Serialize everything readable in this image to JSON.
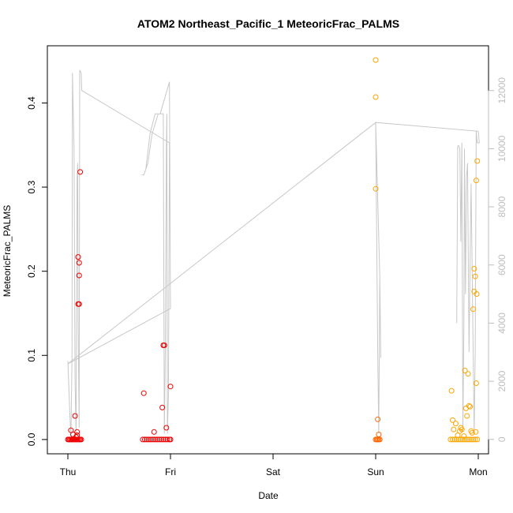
{
  "chart_data": {
    "type": "scatter",
    "title": "ATOM2 Northeast_Pacific_1 MeteoricFrac_PALMS",
    "xlabel": "Date",
    "ylabel": "MeteoricFrac_PALMS",
    "x_ticks": [
      "Thu",
      "Fri",
      "Sat",
      "Sun",
      "Mon"
    ],
    "xlim_days": [
      -0.2,
      4.1
    ],
    "ylim": [
      -0.017,
      0.468
    ],
    "y_ticks": [
      0.0,
      0.1,
      0.2,
      0.3,
      0.4
    ],
    "y2_ticks": [
      0,
      2000,
      4000,
      6000,
      8000,
      10000,
      12000
    ],
    "y2lim": [
      -495,
      13540
    ],
    "grid": false,
    "legend": "none",
    "colors": {
      "early": "#ee0000",
      "mid": "#ff6600",
      "late": "#ffa500",
      "altitude": "#c8c8c8"
    },
    "altitude_line": [
      [
        0.0,
        2700
      ],
      [
        0.02,
        800
      ],
      [
        0.03,
        100
      ],
      [
        0.04,
        2700
      ],
      [
        0.045,
        12600
      ],
      [
        0.06,
        10000
      ],
      [
        0.07,
        2000
      ],
      [
        0.08,
        200
      ],
      [
        0.09,
        9000
      ],
      [
        0.095,
        9500
      ],
      [
        0.1,
        4000
      ],
      [
        0.11,
        400
      ],
      [
        0.115,
        12700
      ],
      [
        0.13,
        12600
      ],
      [
        0.135,
        12000
      ],
      [
        0.99,
        10200
      ],
      [
        0.98,
        1500
      ],
      [
        0.97,
        200
      ],
      [
        0.965,
        11200
      ],
      [
        0.96,
        10000
      ],
      [
        0.95,
        3000
      ],
      [
        0.94,
        200
      ],
      [
        0.93,
        11200
      ],
      [
        0.88,
        11200
      ],
      [
        0.82,
        10500
      ],
      [
        0.78,
        9500
      ],
      [
        0.74,
        9100
      ],
      [
        0.72,
        9100
      ],
      [
        0.74,
        9100
      ],
      [
        0.76,
        9300
      ],
      [
        0.8,
        10500
      ],
      [
        0.85,
        11200
      ],
      [
        0.9,
        11200
      ],
      [
        0.99,
        12300
      ],
      [
        1.0,
        4500
      ],
      [
        0.0,
        2600
      ],
      [
        3.0,
        10900
      ],
      [
        3.02,
        3000
      ],
      [
        3.03,
        200
      ],
      [
        3.04,
        5600
      ],
      [
        3.05,
        2800
      ],
      [
        3.04,
        5600
      ],
      [
        3.0,
        10900
      ],
      [
        4.0,
        10600
      ],
      [
        4.01,
        10200
      ],
      [
        3.99,
        10200
      ],
      [
        3.98,
        10600
      ],
      [
        3.97,
        3000
      ],
      [
        3.96,
        200
      ],
      [
        3.93,
        8800
      ],
      [
        3.92,
        6000
      ],
      [
        3.91,
        3000
      ],
      [
        3.895,
        9500
      ],
      [
        3.885,
        9000
      ],
      [
        3.875,
        5000
      ],
      [
        3.865,
        10000
      ],
      [
        3.86,
        4000
      ],
      [
        3.85,
        300
      ],
      [
        3.84,
        10200
      ],
      [
        3.83,
        6800
      ],
      [
        3.82,
        10000
      ],
      [
        3.81,
        10100
      ],
      [
        3.8,
        10100
      ],
      [
        3.79,
        4000
      ]
    ],
    "series": [
      {
        "color": "#ee0000",
        "x": [
          0.0,
          0.01,
          0.02,
          0.03,
          0.04,
          0.05,
          0.06,
          0.07,
          0.08,
          0.09,
          0.1,
          0.11,
          0.12,
          0.13,
          0.03,
          0.05,
          0.07,
          0.09,
          0.1,
          0.11,
          0.1,
          0.11,
          0.11,
          0.12,
          0.09,
          0.08,
          0.73,
          0.75,
          0.77,
          0.79,
          0.81,
          0.83,
          0.85,
          0.87,
          0.89,
          0.91,
          0.93,
          0.95,
          0.97,
          0.99,
          1.0,
          0.74,
          0.84,
          0.92,
          0.93,
          0.94,
          0.96,
          1.0
        ],
        "y": [
          0.0,
          0.0,
          0.0,
          0.0,
          0.0,
          0.0,
          0.0,
          0.0,
          0.0,
          0.0,
          0.0,
          0.0,
          0.0,
          0.0,
          0.011,
          0.006,
          0.028,
          0.009,
          0.161,
          0.161,
          0.217,
          0.195,
          0.21,
          0.318,
          0.005,
          0.003,
          0.0,
          0.0,
          0.0,
          0.0,
          0.0,
          0.0,
          0.0,
          0.0,
          0.0,
          0.0,
          0.0,
          0.0,
          0.0,
          0.0,
          0.0,
          0.055,
          0.009,
          0.038,
          0.112,
          0.112,
          0.014,
          0.063
        ]
      },
      {
        "color": "#ff6600",
        "x": [
          3.0,
          3.01,
          3.02,
          3.03,
          3.04,
          3.02,
          3.03
        ],
        "y": [
          0.0,
          0.0,
          0.0,
          0.0,
          0.0,
          0.024,
          0.006
        ]
      },
      {
        "color": "#ffa500",
        "x": [
          3.0,
          3.0,
          3.0,
          3.73,
          3.75,
          3.77,
          3.79,
          3.81,
          3.83,
          3.85,
          3.87,
          3.89,
          3.91,
          3.93,
          3.95,
          3.97,
          3.99,
          3.74,
          3.75,
          3.76,
          3.78,
          3.8,
          3.82,
          3.83,
          3.84,
          3.86,
          3.87,
          3.88,
          3.89,
          3.9,
          3.91,
          3.92,
          3.93,
          3.94,
          3.95,
          3.96,
          3.97,
          3.98,
          3.99,
          3.985,
          3.98,
          3.975,
          3.96
        ],
        "y": [
          0.451,
          0.407,
          0.298,
          0.0,
          0.0,
          0.0,
          0.0,
          0.0,
          0.0,
          0.0,
          0.0,
          0.0,
          0.0,
          0.0,
          0.0,
          0.0,
          0.0,
          0.058,
          0.023,
          0.012,
          0.019,
          0.005,
          0.01,
          0.014,
          0.012,
          0.004,
          0.082,
          0.037,
          0.028,
          0.078,
          0.04,
          0.039,
          0.01,
          0.008,
          0.155,
          0.203,
          0.194,
          0.308,
          0.331,
          0.173,
          0.067,
          0.009,
          0.176
        ]
      }
    ]
  }
}
